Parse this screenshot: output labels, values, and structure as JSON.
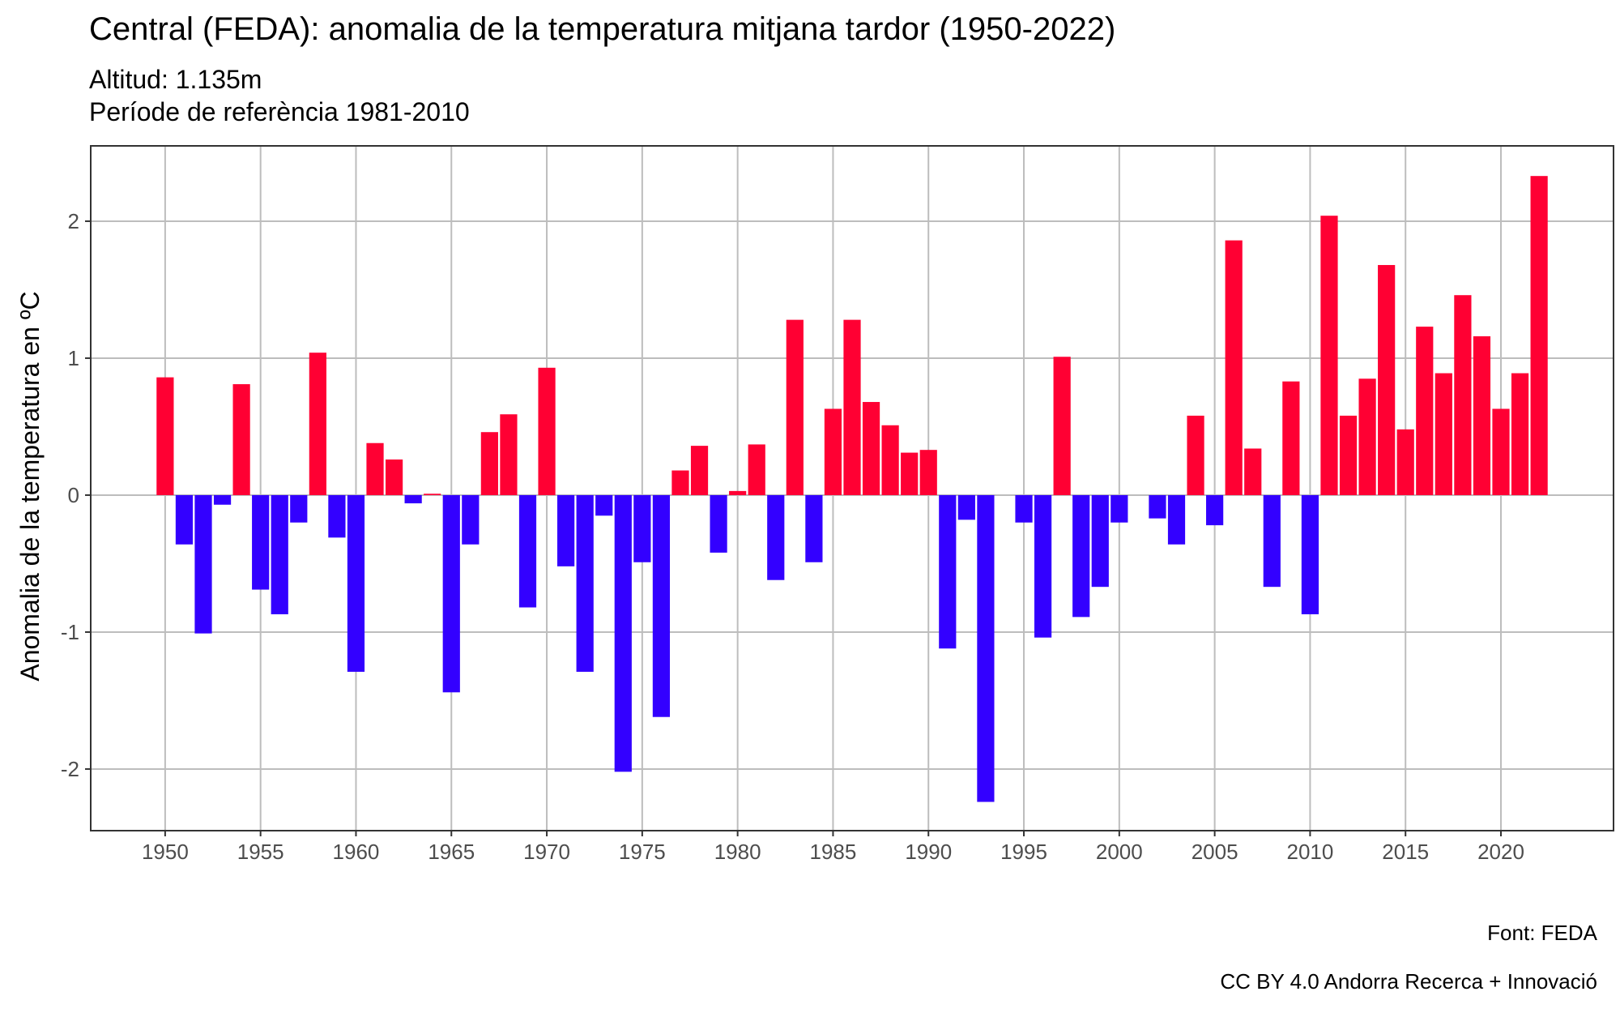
{
  "title": "Central (FEDA): anomalia de la temperatura mitjana tardor (1950-2022)",
  "subtitle_lines": [
    "Altitud: 1.135m",
    "Període de referència 1981-2010"
  ],
  "captions": [
    "Font: FEDA",
    "CC BY 4.0 Andorra Recerca + Innovació"
  ],
  "colors": {
    "positive": "#ff0033",
    "negative": "#3300ff",
    "grid": "#bdbdbd",
    "panel_border": "#333333",
    "tick_text": "#4d4d4d"
  },
  "chart_data": {
    "type": "bar",
    "ylabel": "Anomalia de la temperatura en ºC",
    "xlabel": "",
    "ylim": [
      -2.45,
      2.55
    ],
    "xlim": [
      1946.1,
      2025.9
    ],
    "y_ticks": [
      -2,
      -1,
      0,
      1,
      2
    ],
    "y_tick_labels": [
      "-2",
      "-1",
      "0",
      "1",
      "2"
    ],
    "x_ticks": [
      1950,
      1955,
      1960,
      1965,
      1970,
      1975,
      1980,
      1985,
      1990,
      1995,
      2000,
      2005,
      2010,
      2015,
      2020
    ],
    "x_tick_labels": [
      "1950",
      "1955",
      "1960",
      "1965",
      "1970",
      "1975",
      "1980",
      "1985",
      "1990",
      "1995",
      "2000",
      "2005",
      "2010",
      "2015",
      "2020"
    ],
    "grid": true,
    "legend": "none",
    "years": [
      1950,
      1951,
      1952,
      1953,
      1954,
      1955,
      1956,
      1957,
      1958,
      1959,
      1960,
      1961,
      1962,
      1963,
      1964,
      1965,
      1966,
      1967,
      1968,
      1969,
      1970,
      1971,
      1972,
      1973,
      1974,
      1975,
      1976,
      1977,
      1978,
      1979,
      1980,
      1981,
      1982,
      1983,
      1984,
      1985,
      1986,
      1987,
      1988,
      1989,
      1990,
      1991,
      1992,
      1993,
      1994,
      1995,
      1996,
      1997,
      1998,
      1999,
      2000,
      2001,
      2002,
      2003,
      2004,
      2005,
      2006,
      2007,
      2008,
      2009,
      2010,
      2011,
      2012,
      2013,
      2014,
      2015,
      2016,
      2017,
      2018,
      2019,
      2020,
      2021,
      2022
    ],
    "values": [
      0.86,
      -0.36,
      -1.01,
      -0.07,
      0.81,
      -0.69,
      -0.87,
      -0.2,
      1.04,
      -0.31,
      -1.29,
      0.38,
      0.26,
      -0.06,
      0.01,
      -1.44,
      -0.36,
      0.46,
      0.59,
      -0.82,
      0.93,
      -0.52,
      -1.29,
      -0.15,
      -2.02,
      -0.49,
      -1.62,
      0.18,
      0.36,
      -0.42,
      0.03,
      0.37,
      -0.62,
      1.28,
      -0.49,
      0.63,
      1.28,
      0.68,
      0.51,
      0.31,
      0.33,
      -1.12,
      -0.18,
      -2.24,
      0.0,
      -0.2,
      -1.04,
      1.01,
      -0.89,
      -0.67,
      -0.2,
      0.0,
      -0.17,
      -0.36,
      0.58,
      -0.22,
      1.86,
      0.34,
      -0.67,
      0.83,
      -0.87,
      2.04,
      0.58,
      0.85,
      1.68,
      0.48,
      1.23,
      0.89,
      1.46,
      1.16,
      0.63,
      0.89,
      2.33
    ]
  }
}
